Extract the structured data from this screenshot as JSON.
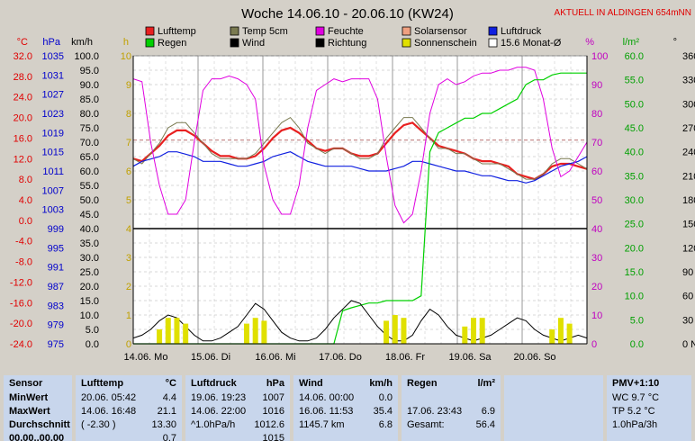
{
  "header": {
    "title": "Woche 14.06.10 - 20.06.10 (KW24)",
    "station": "AKTUELL IN ALDINGEN 654mNN"
  },
  "legend": [
    {
      "label": "Lufttemp",
      "color": "#e82020"
    },
    {
      "label": "Temp 5cm",
      "color": "#7a7a50"
    },
    {
      "label": "Feuchte",
      "color": "#e000e0"
    },
    {
      "label": "Solarsensor",
      "color": "#f0a080"
    },
    {
      "label": "Luftdruck",
      "color": "#1020e0"
    },
    {
      "label": "Regen",
      "color": "#00d000"
    },
    {
      "label": "Wind",
      "color": "#000000"
    },
    {
      "label": "Richtung",
      "color": "#000000"
    },
    {
      "label": "Sonnenschein",
      "color": "#e0e000"
    },
    {
      "label": "15.6 Monat-Ø",
      "color": "#ffffff"
    }
  ],
  "units": {
    "celsius": "°C",
    "hpa": "hPa",
    "kmh": "km/h",
    "hours": "h",
    "percent": "%",
    "rain": "l/m²",
    "degree": "°"
  },
  "chart_data": {
    "type": "line",
    "title": "Woche 14.06.10 - 20.06.10 (KW24)",
    "x_labels": [
      "14.06. Mo",
      "15.06. Di",
      "16.06. Mi",
      "17.06. Do",
      "18.06. Fr",
      "19.06. Sa",
      "20.06. So"
    ],
    "axes": {
      "temp_c": {
        "min": -24,
        "max": 32,
        "step": 4,
        "color": "#e00000"
      },
      "pressure_hpa": {
        "min": 975,
        "max": 1035,
        "ticks": [
          975,
          979,
          983,
          987,
          991,
          995,
          999,
          1003,
          1007,
          1011,
          1015,
          1019,
          1023,
          1027,
          1031,
          1035
        ],
        "color": "#0000cc"
      },
      "wind_kmh": {
        "min": 0,
        "max": 100,
        "step": 5
      },
      "sun_h": {
        "min": 0,
        "max": 10,
        "step": 1,
        "color": "#c0a000"
      },
      "humidity_pct": {
        "min": 0,
        "max": 100,
        "step": 10,
        "color": "#c000c0"
      },
      "rain_l": {
        "min": 0,
        "max": 60,
        "step": 5,
        "color": "#00a000"
      },
      "direction_deg": {
        "ticks": [
          "0 N",
          "30",
          "60",
          "90 O",
          "120",
          "150",
          "180 S",
          "210",
          "240",
          "270 W",
          "300",
          "330",
          "360 N"
        ]
      }
    },
    "monthly_average_c": 15.6,
    "series": [
      {
        "name": "Lufttemp",
        "axis": "temp_c",
        "color": "#e82020",
        "values": [
          12,
          11.5,
          13,
          14.5,
          16.5,
          17.5,
          17.5,
          16.5,
          15,
          13.5,
          12.5,
          12.5,
          12,
          12,
          12.5,
          14,
          16,
          17.5,
          18,
          17,
          15.5,
          14,
          13.5,
          14,
          14,
          13,
          12.5,
          12.5,
          13,
          15,
          17,
          18.5,
          19,
          17.5,
          16,
          14.5,
          14,
          13.5,
          13,
          12,
          11.5,
          11.5,
          11,
          10.5,
          9,
          8.5,
          8,
          9,
          10.5,
          11,
          11,
          10.5,
          10
        ]
      },
      {
        "name": "Temp 5cm",
        "axis": "temp_c",
        "color": "#7a7a50",
        "values": [
          12,
          11,
          13,
          15,
          18,
          19,
          19,
          17,
          15,
          13,
          12,
          12,
          12,
          12,
          13,
          15,
          17,
          19,
          20,
          18,
          15,
          14,
          13,
          14,
          14,
          13,
          12,
          12,
          13,
          16,
          18,
          20,
          20,
          18,
          16,
          14,
          14,
          13,
          13,
          12,
          11,
          11,
          11,
          10,
          9,
          8,
          8,
          9,
          11,
          12,
          12,
          11,
          10
        ]
      },
      {
        "name": "Luftdruck",
        "axis": "pressure_hpa",
        "color": "#1020e0",
        "values": [
          1012,
          1013,
          1013.5,
          1014,
          1015,
          1015,
          1014.5,
          1014,
          1013,
          1013,
          1013,
          1012.5,
          1012,
          1012,
          1012.5,
          1013,
          1014,
          1014.5,
          1015,
          1014,
          1013,
          1012.5,
          1012,
          1012,
          1012,
          1012,
          1011.5,
          1011,
          1011,
          1011,
          1011.5,
          1012,
          1013,
          1013,
          1012.5,
          1012,
          1011.5,
          1011,
          1011,
          1010.5,
          1010,
          1010,
          1009.5,
          1009,
          1009,
          1008.5,
          1009,
          1010,
          1011,
          1012,
          1012.5,
          1013,
          1014
        ]
      },
      {
        "name": "Feuchte",
        "axis": "humidity_pct",
        "color": "#e000e0",
        "values": [
          92,
          91,
          70,
          55,
          45,
          45,
          50,
          70,
          88,
          92,
          92,
          93,
          92,
          90,
          85,
          62,
          50,
          45,
          45,
          55,
          75,
          88,
          90,
          92,
          91,
          92,
          92,
          92,
          85,
          65,
          48,
          42,
          45,
          60,
          80,
          90,
          92,
          90,
          91,
          93,
          94,
          94,
          95,
          95,
          96,
          96,
          95,
          85,
          68,
          58,
          60,
          65,
          70
        ]
      },
      {
        "name": "Regen",
        "axis": "rain_l",
        "color": "#00d000",
        "values": [
          0,
          0,
          0,
          0,
          0,
          0,
          0,
          0,
          0,
          0,
          0,
          0,
          0,
          0,
          0,
          0,
          0,
          0,
          0,
          0,
          0,
          0,
          0,
          0,
          6.9,
          7.5,
          8,
          8.5,
          8.5,
          9,
          9,
          9,
          9,
          10,
          40,
          44,
          45,
          46,
          47,
          47,
          48,
          48,
          49,
          50,
          51,
          54,
          55,
          55,
          56,
          56.4,
          56.4,
          56.4,
          56.4
        ]
      },
      {
        "name": "Wind",
        "axis": "wind_kmh",
        "color": "#000000",
        "values": [
          2,
          3,
          5,
          8,
          10,
          9,
          6,
          3,
          1,
          1,
          2,
          4,
          6,
          10,
          14,
          12,
          8,
          4,
          2,
          1,
          1,
          2,
          5,
          9,
          12,
          15,
          14,
          10,
          6,
          3,
          1,
          1,
          3,
          8,
          12,
          10,
          6,
          3,
          2,
          1,
          2,
          3,
          5,
          7,
          9,
          8,
          5,
          3,
          2,
          1,
          2,
          3,
          2
        ]
      },
      {
        "name": "Sonnenschein",
        "axis": "sun_h",
        "color": "#e0e000",
        "values": [
          0,
          0,
          0,
          0.5,
          0.9,
          0.9,
          0.7,
          0,
          0,
          0,
          0,
          0,
          0,
          0.7,
          0.9,
          0.8,
          0,
          0,
          0,
          0,
          0,
          0,
          0,
          0,
          0,
          0,
          0,
          0,
          0,
          0.8,
          1,
          0.9,
          0,
          0,
          0,
          0,
          0,
          0,
          0.6,
          0.9,
          0.9,
          0,
          0,
          0,
          0,
          0,
          0,
          0,
          0.5,
          0.9,
          0.7,
          0,
          0
        ]
      }
    ]
  },
  "table": {
    "sensor": {
      "title": "Sensor",
      "rows": [
        "MinWert",
        "MaxWert",
        "Durchschnitt",
        "00.00..00.00"
      ]
    },
    "lufttemp": {
      "title": "Lufttemp",
      "unit": "°C",
      "rows": [
        {
          "left": "20.06.  05:42",
          "right": "4.4"
        },
        {
          "left": "14.06.  16:48",
          "right": "21.1"
        },
        {
          "left": "( -2.30 )",
          "right": "13.30"
        },
        {
          "left": "",
          "right": "0.7"
        }
      ]
    },
    "luftdruck": {
      "title": "Luftdruck",
      "unit": "hPa",
      "rows": [
        {
          "left": "19.06.  19:23",
          "right": "1007"
        },
        {
          "left": "14.06.  22:00",
          "right": "1016"
        },
        {
          "left": "^1.0hPa/h",
          "right": "1012.6"
        },
        {
          "left": "",
          "right": "1015"
        }
      ]
    },
    "wind": {
      "title": "Wind",
      "unit": "km/h",
      "rows": [
        {
          "left": "14.06.  00:00",
          "right": "0.0"
        },
        {
          "left": "16.06.  11:53",
          "right": "35.4"
        },
        {
          "left": "1145.7 km",
          "right": "6.8"
        },
        {
          "left": "",
          "right": ""
        }
      ]
    },
    "regen": {
      "title": "Regen",
      "unit": "l/m²",
      "rows": [
        {
          "left": "",
          "right": ""
        },
        {
          "left": "17.06.  23:43",
          "right": "6.9"
        },
        {
          "left": "Gesamt:",
          "right": "56.4"
        },
        {
          "left": "",
          "right": ""
        }
      ]
    },
    "pmv": {
      "title": "PMV+1:10",
      "rows": [
        "WC 9.7 °C",
        "TP 5.2 °C",
        "1.0hPa/3h",
        ""
      ]
    }
  }
}
